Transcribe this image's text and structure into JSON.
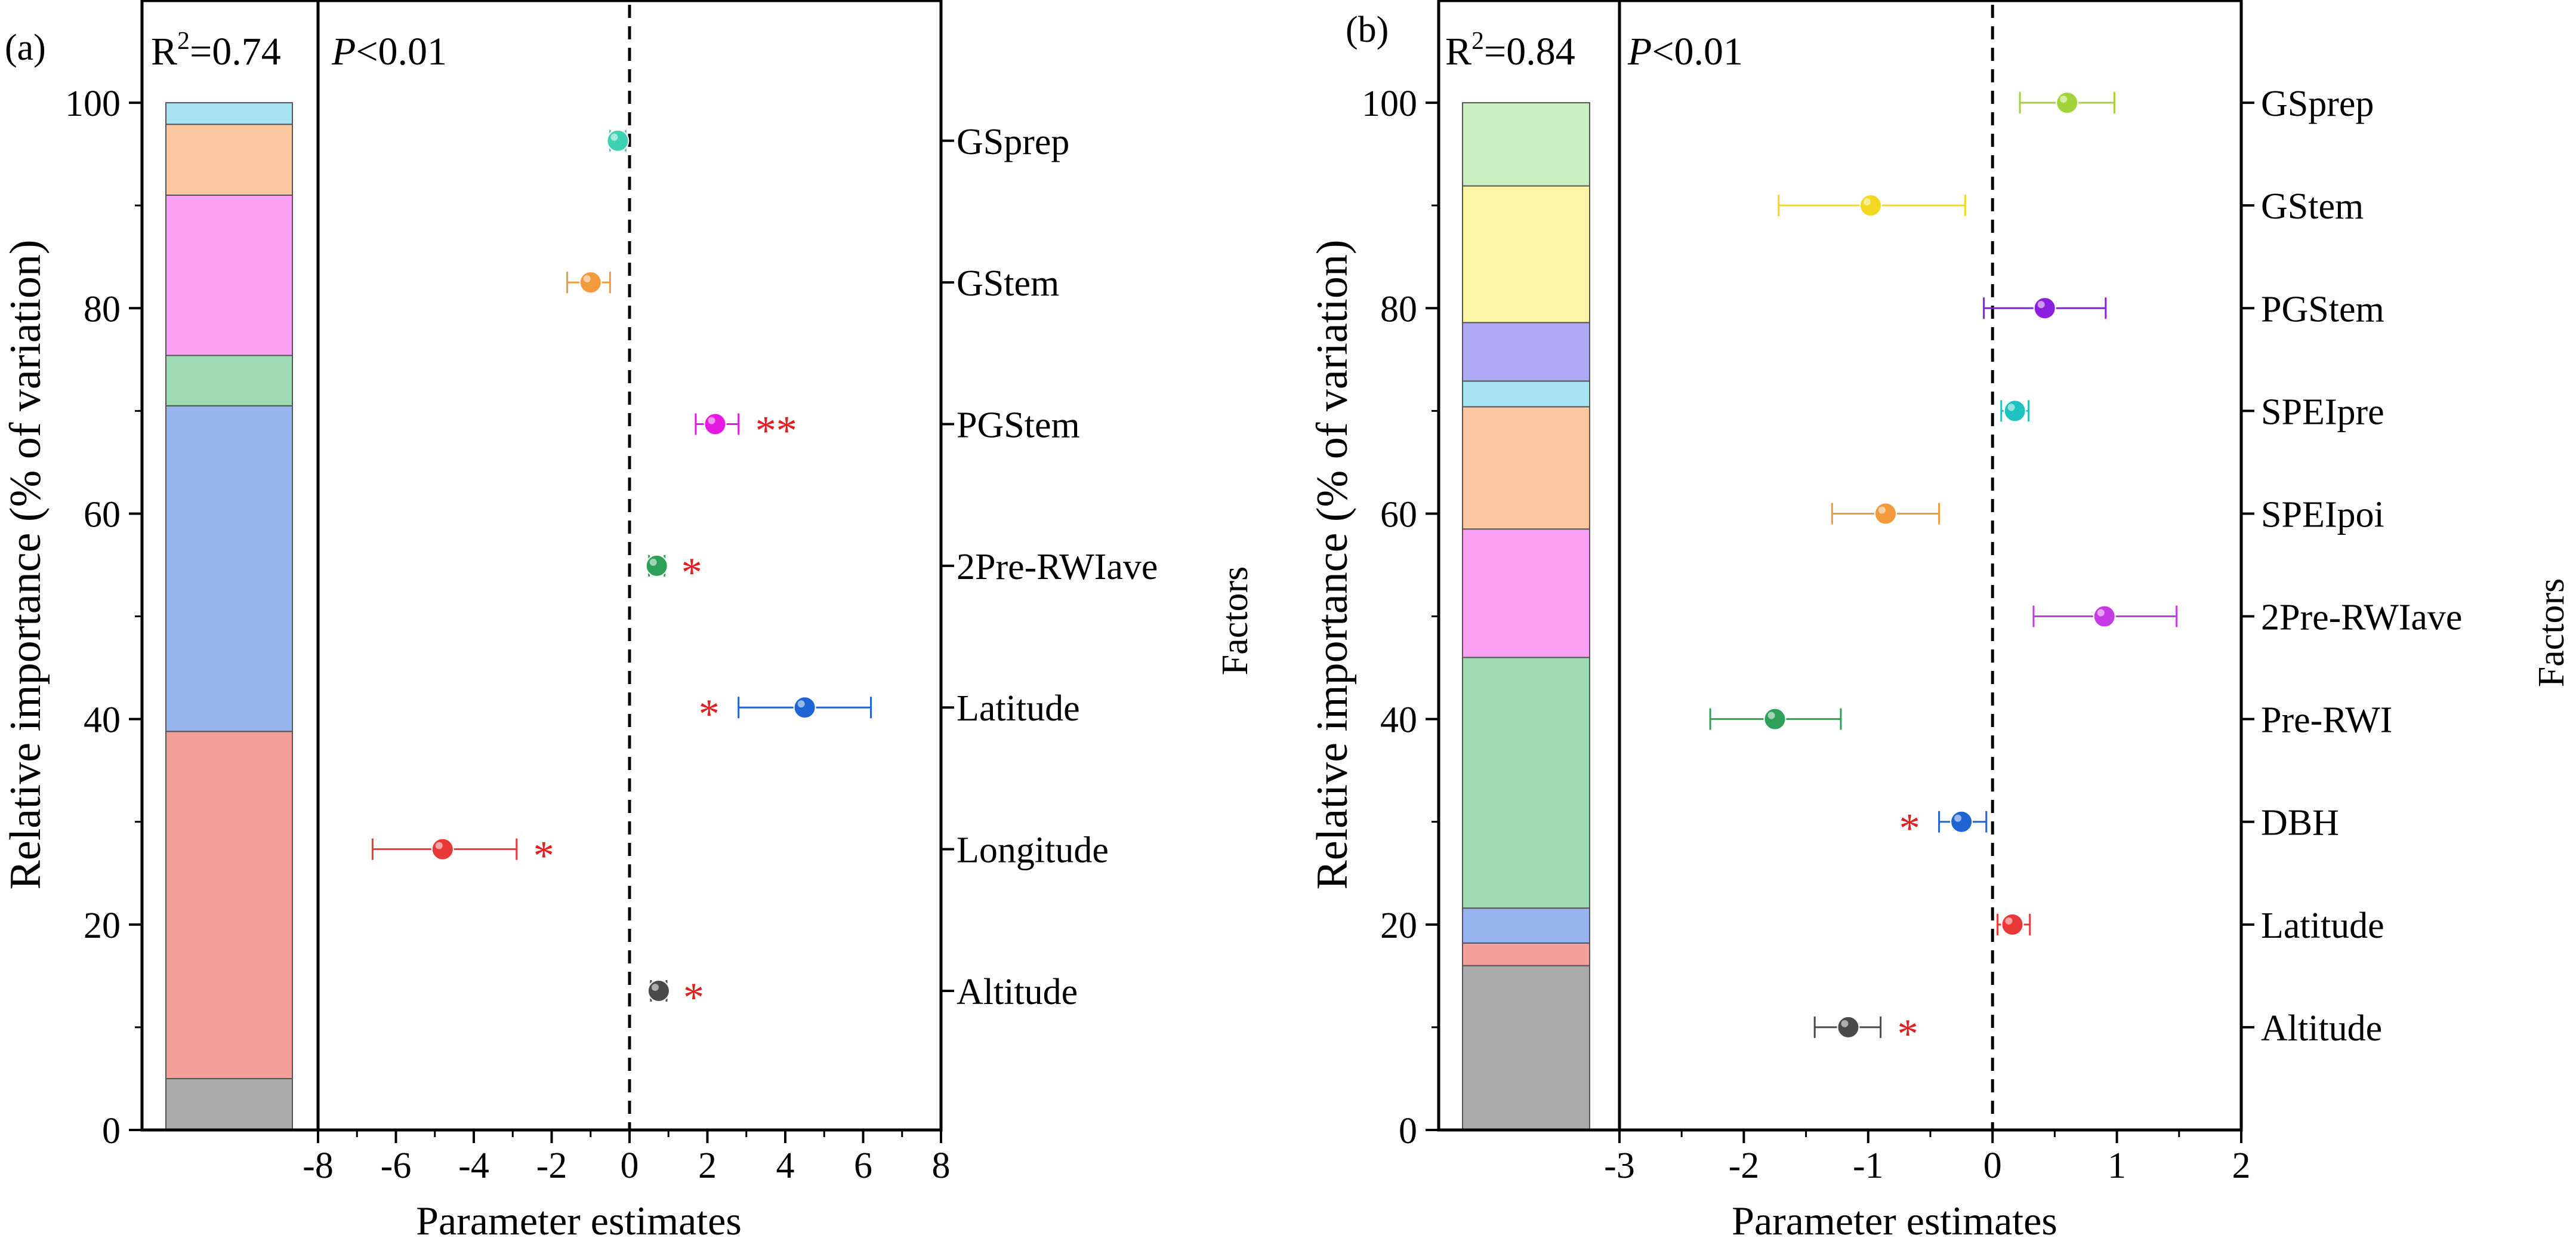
{
  "chart_data": [
    {
      "type": "scatter",
      "panel_label": "(a)",
      "r2_text": "R",
      "r2_sup": "2",
      "r2_value": "=0.74",
      "p_italic": "P",
      "p_rest": "<0.01",
      "ylabel": "Relative importance (% of variation)",
      "xlabel": "Parameter estimates",
      "factors_label": "Factors",
      "ylim": [
        0,
        110
      ],
      "xlim": [
        -8,
        8
      ],
      "yticks": [
        "0",
        "20",
        "40",
        "60",
        "80",
        "100"
      ],
      "xticks": [
        "-8",
        "-6",
        "-4",
        "-2",
        "0",
        "2",
        "4",
        "6",
        "8"
      ],
      "stack": [
        {
          "factor": "Altitude",
          "value": 5,
          "color": "#aaaaaa"
        },
        {
          "factor": "Longitude",
          "value": 33.8,
          "color": "#f4a09a"
        },
        {
          "factor": "Latitude",
          "value": 31.7,
          "color": "#97b4ef"
        },
        {
          "factor": "2Pre-RWIave",
          "value": 4.9,
          "color": "#9edbb4"
        },
        {
          "factor": "PGStem",
          "value": 15.6,
          "color": "#fba1f5"
        },
        {
          "factor": "GStem",
          "value": 6.9,
          "color": "#fdc8a1"
        },
        {
          "factor": "GSprep",
          "value": 2.1,
          "color": "#a7e3f3"
        }
      ],
      "estimates": [
        {
          "factor": "GSprep",
          "estimate": -0.3,
          "lower": -0.5,
          "upper": -0.1,
          "sig": "",
          "sig_side": "right",
          "color": "#3fd1b4"
        },
        {
          "factor": "GStem",
          "estimate": -1.0,
          "lower": -1.6,
          "upper": -0.5,
          "sig": "",
          "sig_side": "right",
          "color": "#f29a3c"
        },
        {
          "factor": "PGStem",
          "estimate": 2.2,
          "lower": 1.7,
          "upper": 2.8,
          "sig": "**",
          "sig_side": "right",
          "color": "#e619e0"
        },
        {
          "factor": "2Pre-RWIave",
          "estimate": 0.7,
          "lower": 0.5,
          "upper": 0.9,
          "sig": "*",
          "sig_side": "right",
          "color": "#2fa05a"
        },
        {
          "factor": "Latitude",
          "estimate": 4.5,
          "lower": 2.8,
          "upper": 6.2,
          "sig": "*",
          "sig_side": "left",
          "color": "#1e64d2"
        },
        {
          "factor": "Longitude",
          "estimate": -4.8,
          "lower": -6.6,
          "upper": -2.9,
          "sig": "*",
          "sig_side": "right",
          "color": "#e83838"
        },
        {
          "factor": "Altitude",
          "estimate": 0.75,
          "lower": 0.55,
          "upper": 0.95,
          "sig": "*",
          "sig_side": "right",
          "color": "#4a4a4a"
        }
      ]
    },
    {
      "type": "scatter",
      "panel_label": "(b)",
      "r2_text": "R",
      "r2_sup": "2",
      "r2_value": "=0.84",
      "p_italic": "P",
      "p_rest": "<0.01",
      "ylabel": "Relative importance (% of variation)",
      "xlabel": "Parameter estimates",
      "factors_label": "Factors",
      "ylim": [
        0,
        110
      ],
      "xlim": [
        -3,
        2
      ],
      "yticks": [
        "0",
        "20",
        "40",
        "60",
        "80",
        "100"
      ],
      "xticks": [
        "-3",
        "-2",
        "-1",
        "0",
        "1",
        "2"
      ],
      "stack": [
        {
          "factor": "Altitude",
          "value": 16,
          "color": "#aaaaaa"
        },
        {
          "factor": "Latitude",
          "value": 2.2,
          "color": "#f4a09a"
        },
        {
          "factor": "DBH",
          "value": 3.4,
          "color": "#97b4ef"
        },
        {
          "factor": "Pre-RWI",
          "value": 24.4,
          "color": "#9edbb4"
        },
        {
          "factor": "2Pre-RWIave",
          "value": 12.5,
          "color": "#fba1f5"
        },
        {
          "factor": "SPEIpoi",
          "value": 11.9,
          "color": "#fdc8a1"
        },
        {
          "factor": "SPEIpre",
          "value": 2.5,
          "color": "#a7e3f3"
        },
        {
          "factor": "PGStem",
          "value": 5.7,
          "color": "#aeaaf4"
        },
        {
          "factor": "GStem",
          "value": 13.3,
          "color": "#fdf4a6"
        },
        {
          "factor": "GSprep",
          "value": 8.1,
          "color": "#c8eec2"
        }
      ],
      "estimates": [
        {
          "factor": "GSprep",
          "estimate": 0.6,
          "lower": 0.22,
          "upper": 0.98,
          "sig": "",
          "sig_side": "right",
          "color": "#a3d33b"
        },
        {
          "factor": "GStem",
          "estimate": -0.98,
          "lower": -1.72,
          "upper": -0.22,
          "sig": "",
          "sig_side": "right",
          "color": "#f2d81e"
        },
        {
          "factor": "PGStem",
          "estimate": 0.42,
          "lower": -0.07,
          "upper": 0.91,
          "sig": "",
          "sig_side": "right",
          "color": "#8a1fe0"
        },
        {
          "factor": "SPEIpre",
          "estimate": 0.18,
          "lower": 0.07,
          "upper": 0.29,
          "sig": "",
          "sig_side": "right",
          "color": "#1fc1c1"
        },
        {
          "factor": "SPEIpoi",
          "estimate": -0.86,
          "lower": -1.29,
          "upper": -0.43,
          "sig": "",
          "sig_side": "right",
          "color": "#f29a3c"
        },
        {
          "factor": "2Pre-RWIave",
          "estimate": 0.9,
          "lower": 0.33,
          "upper": 1.48,
          "sig": "",
          "sig_side": "right",
          "color": "#c43be6"
        },
        {
          "factor": "Pre-RWI",
          "estimate": -1.75,
          "lower": -2.27,
          "upper": -1.22,
          "sig": "",
          "sig_side": "right",
          "color": "#2fa05a"
        },
        {
          "factor": "DBH",
          "estimate": -0.25,
          "lower": -0.43,
          "upper": -0.05,
          "sig": "*",
          "sig_side": "left",
          "color": "#1e64d2"
        },
        {
          "factor": "Latitude",
          "estimate": 0.16,
          "lower": 0.04,
          "upper": 0.3,
          "sig": "",
          "sig_side": "right",
          "color": "#e83838"
        },
        {
          "factor": "Altitude",
          "estimate": -1.16,
          "lower": -1.43,
          "upper": -0.9,
          "sig": "*",
          "sig_side": "right",
          "color": "#4a4a4a"
        }
      ]
    }
  ]
}
